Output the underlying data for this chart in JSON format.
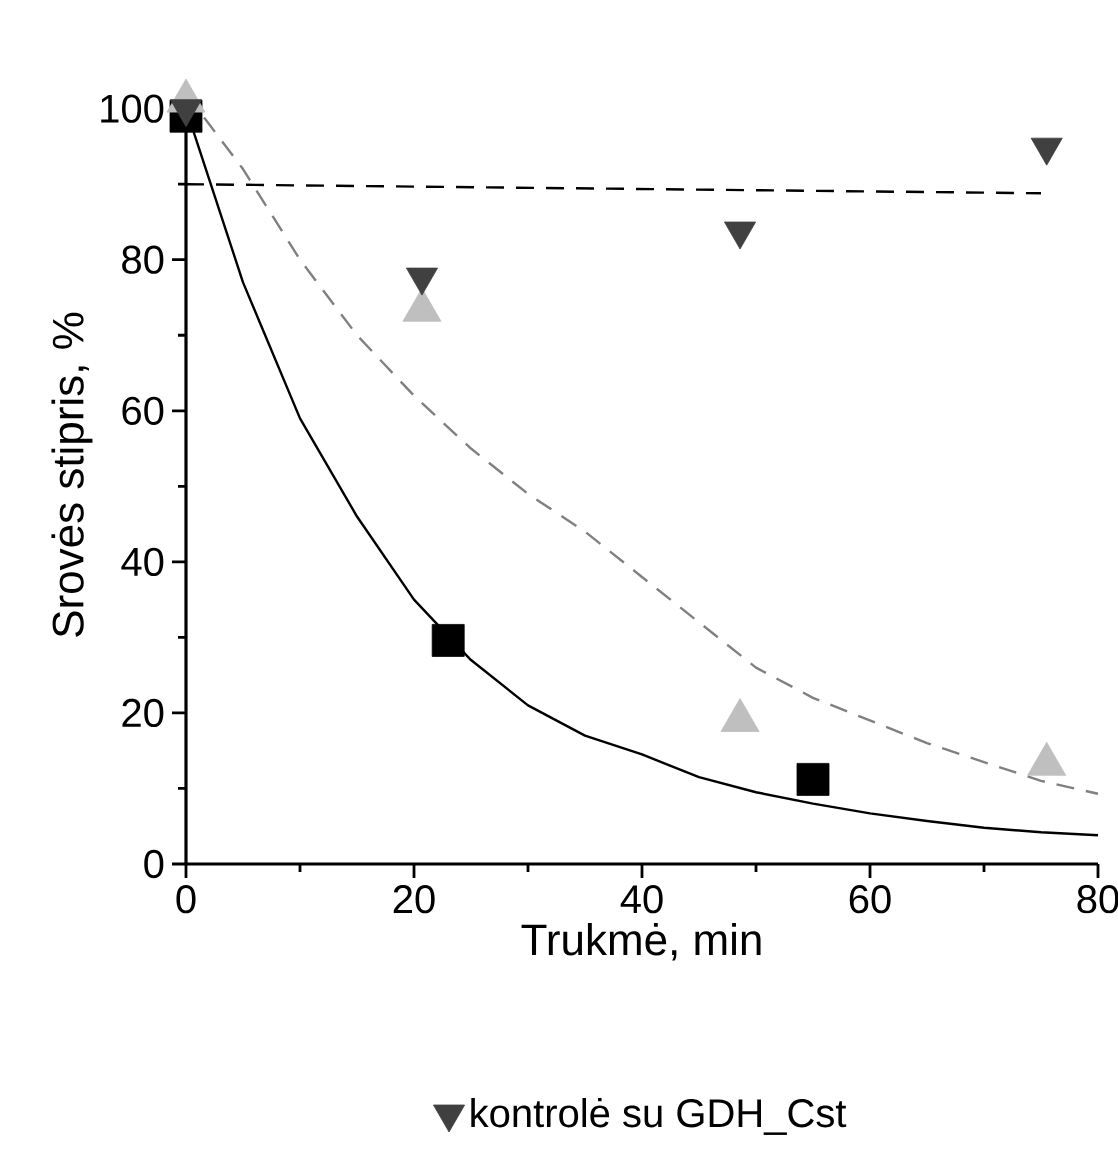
{
  "chart_data": {
    "type": "scatter",
    "xlabel": "Trukmė, min",
    "ylabel": "Srovės stipris, %",
    "xlim": [
      0,
      80
    ],
    "xticks": [
      0,
      20,
      40,
      60,
      80
    ],
    "ylim": [
      0,
      103
    ],
    "yticks": [
      0,
      20,
      40,
      60,
      80,
      100
    ],
    "legend": "bottom",
    "series": [
      {
        "type": "line",
        "color": "#000000",
        "marker": "none",
        "line_style": "solid",
        "x": [
          0,
          5,
          10,
          15,
          20,
          25,
          30,
          35,
          40,
          45,
          50,
          55,
          60,
          65,
          70,
          75,
          80
        ],
        "values": [
          100,
          77,
          59,
          46,
          35,
          27,
          21,
          17,
          14.5,
          11.5,
          9.5,
          8,
          6.7,
          5.7,
          4.8,
          4.2,
          3.8
        ]
      },
      {
        "type": "line",
        "color": "#808080",
        "marker": "none",
        "line_style": "dashed",
        "x": [
          0,
          5,
          10,
          15,
          20,
          25,
          30,
          35,
          40,
          45,
          50,
          55,
          60,
          65,
          70,
          75,
          80
        ],
        "values": [
          102,
          92,
          80,
          70,
          62,
          55,
          49,
          44,
          38,
          32,
          26,
          22,
          19,
          16,
          13.5,
          11,
          9.3
        ]
      },
      {
        "type": "line",
        "color": "#000000",
        "marker": "none",
        "line_style": "dashed",
        "x": [
          0,
          75
        ],
        "values": [
          90,
          88.8
        ]
      },
      {
        "color": "#000000",
        "marker": "square",
        "x": [
          0,
          23,
          55
        ],
        "values": [
          99,
          29.6,
          11.2
        ]
      },
      {
        "color": "#bfbfbf",
        "marker": "triangle",
        "x": [
          0,
          20.7,
          48.6,
          75.5
        ],
        "values": [
          101,
          73.3,
          19,
          13.2
        ]
      },
      {
        "name": "kontrolė su GDH_Cst",
        "color": "#404040",
        "marker": "triangle-down",
        "x": [
          0,
          20.7,
          48.6,
          75.5
        ],
        "values": [
          100,
          77.7,
          83.8,
          94.9
        ]
      }
    ]
  }
}
